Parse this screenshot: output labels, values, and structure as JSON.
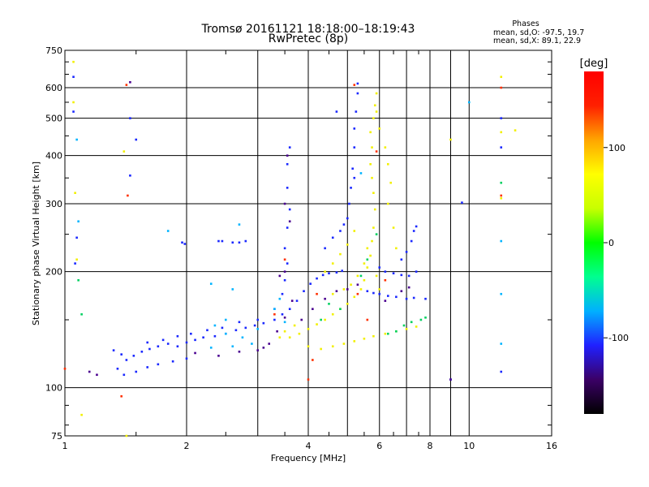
{
  "chart_data": {
    "type": "scatter",
    "title": "Tromsø 20161121 18:18:00–18:19:43",
    "subtitle": "RwPretec (8p)",
    "xlabel": "Frequency [MHz]",
    "ylabel": "Stationary phase Virtual Height [km]",
    "x_scale": "log",
    "y_scale": "log",
    "xlim": [
      1,
      16
    ],
    "ylim": [
      75,
      750
    ],
    "x_ticks": [
      1,
      2,
      4,
      6,
      8,
      10,
      16
    ],
    "x_grid": [
      1,
      2,
      3,
      4,
      5,
      6,
      7,
      8,
      9,
      10,
      16
    ],
    "y_ticks": [
      75,
      100,
      200,
      300,
      400,
      500,
      600,
      750
    ],
    "y_grid": [
      100,
      200,
      300,
      400,
      500,
      600
    ],
    "grid": true,
    "stats": {
      "heading": "Phases",
      "line_o": "mean, sd,O: -97.5, 19.7",
      "line_x": "mean, sd,X: 89.1, 22.9"
    },
    "colorbar": {
      "label": "[deg]",
      "range": [
        -180,
        180
      ],
      "ticks": [
        "100",
        "0",
        "-100"
      ],
      "tick_values": [
        100,
        0,
        -100
      ],
      "colors": [
        "#000000",
        "#3b0066",
        "#2020ff",
        "#00b0ff",
        "#00ff90",
        "#00ff00",
        "#c8ff00",
        "#ffff00",
        "#ffa500",
        "#ff2000",
        "#ff0000"
      ]
    },
    "series": [
      {
        "color_group": "O-mode (blue, ≈ -100°)",
        "points": [
          [
            1.32,
            125
          ],
          [
            1.38,
            122
          ],
          [
            1.42,
            118
          ],
          [
            1.48,
            121
          ],
          [
            1.55,
            124
          ],
          [
            1.62,
            126
          ],
          [
            1.7,
            128
          ],
          [
            1.8,
            130
          ],
          [
            1.9,
            128
          ],
          [
            2.0,
            131
          ],
          [
            2.1,
            133
          ],
          [
            2.2,
            135
          ],
          [
            2.35,
            136
          ],
          [
            2.5,
            138
          ],
          [
            2.65,
            141
          ],
          [
            2.8,
            143
          ],
          [
            2.95,
            145
          ],
          [
            3.1,
            147
          ],
          [
            3.3,
            150
          ],
          [
            3.45,
            155
          ],
          [
            3.6,
            160
          ],
          [
            3.75,
            168
          ],
          [
            3.9,
            178
          ],
          [
            4.05,
            186
          ],
          [
            4.2,
            192
          ],
          [
            4.35,
            196
          ],
          [
            4.5,
            198
          ],
          [
            4.7,
            199
          ],
          [
            4.85,
            201
          ],
          [
            1.6,
            131
          ],
          [
            1.75,
            133
          ],
          [
            1.9,
            136
          ],
          [
            2.05,
            138
          ],
          [
            2.25,
            141
          ],
          [
            2.45,
            143
          ],
          [
            2.7,
            148
          ],
          [
            3.0,
            150
          ],
          [
            3.3,
            160
          ],
          [
            3.45,
            175
          ],
          [
            3.5,
            190
          ],
          [
            3.55,
            210
          ],
          [
            3.5,
            230
          ],
          [
            3.55,
            260
          ],
          [
            3.6,
            290
          ],
          [
            3.55,
            330
          ],
          [
            3.55,
            380
          ],
          [
            3.6,
            420
          ],
          [
            4.4,
            230
          ],
          [
            4.6,
            245
          ],
          [
            4.8,
            255
          ],
          [
            4.9,
            265
          ],
          [
            5.0,
            275
          ],
          [
            5.05,
            300
          ],
          [
            5.1,
            330
          ],
          [
            5.15,
            370
          ],
          [
            5.2,
            420
          ],
          [
            5.2,
            470
          ],
          [
            5.25,
            520
          ],
          [
            5.3,
            580
          ],
          [
            5.3,
            615
          ],
          [
            5.6,
            178
          ],
          [
            5.8,
            176
          ],
          [
            6.0,
            175
          ],
          [
            6.3,
            173
          ],
          [
            6.6,
            172
          ],
          [
            7.0,
            170
          ],
          [
            7.3,
            171
          ],
          [
            6.0,
            205
          ],
          [
            6.2,
            200
          ],
          [
            6.5,
            198
          ],
          [
            6.8,
            196
          ],
          [
            7.1,
            195
          ],
          [
            7.4,
            200
          ],
          [
            6.8,
            215
          ],
          [
            7.0,
            225
          ],
          [
            7.2,
            240
          ],
          [
            7.3,
            255
          ],
          [
            7.4,
            262
          ],
          [
            1.35,
            112
          ],
          [
            1.4,
            108
          ],
          [
            1.5,
            110
          ],
          [
            1.6,
            113
          ],
          [
            1.7,
            115
          ],
          [
            1.85,
            117
          ],
          [
            2.0,
            119
          ],
          [
            1.95,
            238
          ],
          [
            1.98,
            236
          ],
          [
            2.4,
            240
          ],
          [
            2.45,
            240
          ],
          [
            2.6,
            238
          ],
          [
            2.7,
            238
          ],
          [
            2.8,
            240
          ],
          [
            1.05,
            640
          ],
          [
            1.05,
            520
          ],
          [
            1.45,
            500
          ],
          [
            1.5,
            440
          ],
          [
            1.45,
            355
          ],
          [
            1.07,
            245
          ],
          [
            1.06,
            210
          ],
          [
            9.6,
            302
          ],
          [
            9.0,
            105
          ],
          [
            12.0,
            110
          ],
          [
            12.0,
            420
          ],
          [
            12.0,
            500
          ],
          [
            4.7,
            520
          ],
          [
            5.2,
            350
          ],
          [
            7.8,
            170
          ]
        ]
      },
      {
        "color_group": "X-mode (yellow, ≈ +100°)",
        "points": [
          [
            3.6,
            135
          ],
          [
            3.8,
            138
          ],
          [
            4.0,
            142
          ],
          [
            4.2,
            146
          ],
          [
            4.4,
            150
          ],
          [
            4.6,
            155
          ],
          [
            4.8,
            160
          ],
          [
            5.0,
            165
          ],
          [
            5.2,
            172
          ],
          [
            5.4,
            180
          ],
          [
            5.5,
            190
          ],
          [
            5.6,
            205
          ],
          [
            5.7,
            220
          ],
          [
            5.75,
            240
          ],
          [
            5.8,
            260
          ],
          [
            5.85,
            290
          ],
          [
            5.8,
            320
          ],
          [
            5.75,
            350
          ],
          [
            5.7,
            380
          ],
          [
            5.75,
            420
          ],
          [
            5.7,
            460
          ],
          [
            5.8,
            500
          ],
          [
            5.85,
            540
          ],
          [
            5.9,
            580
          ],
          [
            4.0,
            128
          ],
          [
            4.3,
            126
          ],
          [
            4.6,
            128
          ],
          [
            4.9,
            130
          ],
          [
            5.2,
            132
          ],
          [
            5.5,
            134
          ],
          [
            5.8,
            136
          ],
          [
            6.2,
            138
          ],
          [
            6.6,
            140
          ],
          [
            7.0,
            142
          ],
          [
            7.4,
            144
          ],
          [
            4.6,
            175
          ],
          [
            4.9,
            180
          ],
          [
            5.1,
            185
          ],
          [
            5.3,
            195
          ],
          [
            5.5,
            210
          ],
          [
            5.6,
            230
          ],
          [
            5.9,
            195
          ],
          [
            6.0,
            180
          ],
          [
            4.4,
            200
          ],
          [
            4.6,
            210
          ],
          [
            4.8,
            222
          ],
          [
            5.0,
            235
          ],
          [
            5.2,
            255
          ],
          [
            6.2,
            420
          ],
          [
            6.3,
            380
          ],
          [
            6.4,
            340
          ],
          [
            6.3,
            300
          ],
          [
            6.5,
            260
          ],
          [
            6.6,
            230
          ],
          [
            3.4,
            135
          ],
          [
            3.5,
            140
          ],
          [
            3.7,
            145
          ],
          [
            5.9,
            520
          ],
          [
            6.0,
            470
          ],
          [
            1.05,
            700
          ],
          [
            1.05,
            550
          ],
          [
            1.4,
            410
          ],
          [
            1.06,
            320
          ],
          [
            1.07,
            215
          ],
          [
            1.1,
            85
          ],
          [
            1.42,
            75
          ],
          [
            9.0,
            440
          ],
          [
            12.0,
            640
          ],
          [
            12.0,
            460
          ],
          [
            13.0,
            465
          ],
          [
            12.0,
            310
          ]
        ]
      },
      {
        "color_group": "cyan (≈ -40°)",
        "points": [
          [
            2.3,
            127
          ],
          [
            2.6,
            128
          ],
          [
            2.9,
            130
          ],
          [
            2.5,
            138
          ],
          [
            2.75,
            135
          ],
          [
            3.0,
            142
          ],
          [
            2.35,
            145
          ],
          [
            2.5,
            150
          ],
          [
            2.6,
            180
          ],
          [
            2.3,
            186
          ],
          [
            1.8,
            255
          ],
          [
            2.7,
            265
          ],
          [
            3.3,
            160
          ],
          [
            3.5,
            148
          ],
          [
            3.4,
            170
          ],
          [
            1.07,
            440
          ],
          [
            1.08,
            270
          ],
          [
            10.0,
            550
          ],
          [
            12.0,
            240
          ],
          [
            12.0,
            175
          ],
          [
            12.0,
            130
          ],
          [
            5.4,
            360
          ]
        ]
      },
      {
        "color_group": "green (≈ 0°)",
        "points": [
          [
            4.3,
            150
          ],
          [
            4.5,
            165
          ],
          [
            5.4,
            195
          ],
          [
            5.6,
            215
          ],
          [
            6.6,
            140
          ],
          [
            7.2,
            148
          ],
          [
            7.6,
            150
          ],
          [
            7.8,
            152
          ],
          [
            6.3,
            138
          ],
          [
            1.1,
            155
          ],
          [
            1.08,
            190
          ],
          [
            12.0,
            340
          ],
          [
            4.8,
            160
          ],
          [
            5.9,
            250
          ],
          [
            6.9,
            145
          ]
        ]
      },
      {
        "color_group": "red / orange (≈ +140°)",
        "points": [
          [
            1.42,
            610
          ],
          [
            1.43,
            315
          ],
          [
            1.38,
            95
          ],
          [
            3.3,
            155
          ],
          [
            3.5,
            215
          ],
          [
            4.1,
            118
          ],
          [
            4.2,
            175
          ],
          [
            5.3,
            175
          ],
          [
            5.6,
            150
          ],
          [
            5.9,
            410
          ],
          [
            6.2,
            190
          ],
          [
            12.0,
            315
          ],
          [
            12.0,
            600
          ],
          [
            4.0,
            105
          ],
          [
            1.0,
            112
          ],
          [
            5.2,
            610
          ]
        ]
      },
      {
        "color_group": "purple (≈ -130°)",
        "points": [
          [
            3.0,
            125
          ],
          [
            3.1,
            127
          ],
          [
            3.2,
            130
          ],
          [
            3.35,
            140
          ],
          [
            3.5,
            152
          ],
          [
            3.65,
            168
          ],
          [
            3.85,
            150
          ],
          [
            4.1,
            160
          ],
          [
            4.4,
            170
          ],
          [
            4.7,
            178
          ],
          [
            5.0,
            180
          ],
          [
            5.3,
            185
          ],
          [
            6.2,
            168
          ],
          [
            6.8,
            178
          ],
          [
            7.1,
            182
          ],
          [
            2.1,
            123
          ],
          [
            2.4,
            121
          ],
          [
            2.7,
            124
          ],
          [
            3.4,
            195
          ],
          [
            3.5,
            200
          ],
          [
            3.6,
            270
          ],
          [
            3.5,
            300
          ],
          [
            3.55,
            400
          ],
          [
            1.15,
            110
          ],
          [
            1.2,
            108
          ],
          [
            1.45,
            620
          ],
          [
            9.0,
            105
          ]
        ]
      }
    ]
  }
}
